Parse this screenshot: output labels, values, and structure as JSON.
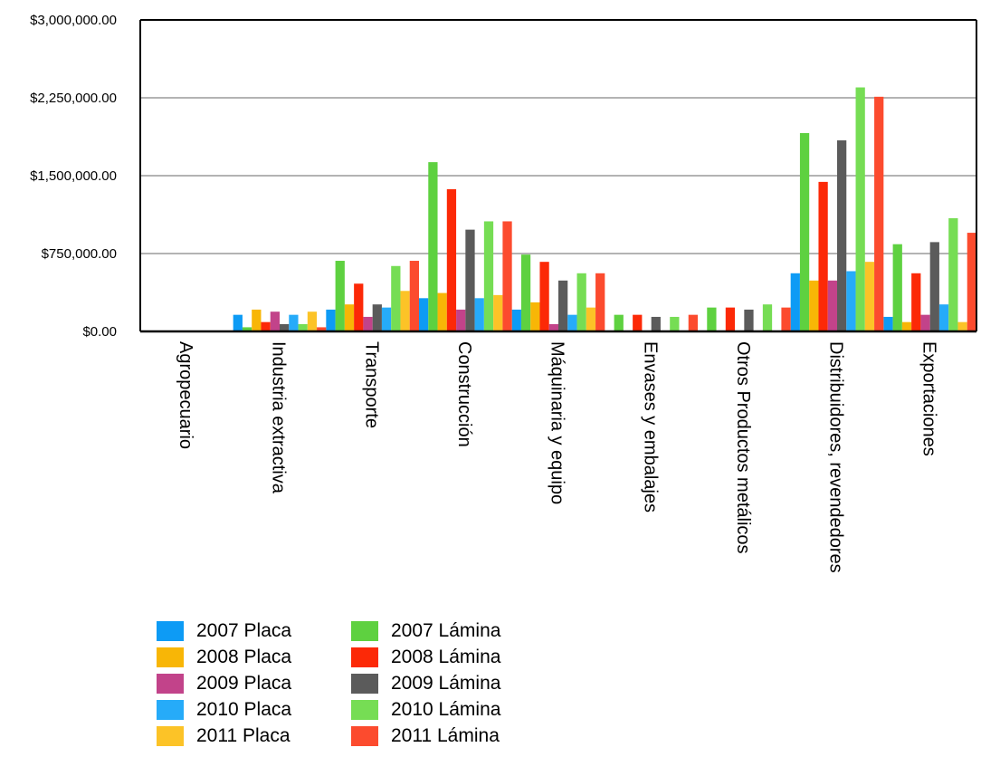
{
  "chart_data": {
    "type": "bar",
    "title": "",
    "xlabel": "",
    "ylabel": "",
    "ylim": [
      0,
      3000000
    ],
    "y_ticks": [
      "$0.00",
      "$750,000.00",
      "$1,500,000.00",
      "$2,250,000.00",
      "$3,000,000.00"
    ],
    "grid": true,
    "legend_position": "bottom-left",
    "categories": [
      "Agropecuario",
      "Industria extractiva",
      "Transporte",
      "Construcción",
      "Máquinaria y equipo",
      "Envases y embalajes",
      "Otros Productos metálicos",
      "Distribuidores, revendedores",
      "Exportaciones"
    ],
    "series": [
      {
        "name": "2007 Placa",
        "color": "#0d9bf5",
        "values": [
          0,
          160000,
          210000,
          320000,
          210000,
          0,
          0,
          560000,
          140000
        ]
      },
      {
        "name": "2007 Lámina",
        "color": "#5ed140",
        "values": [
          0,
          40000,
          680000,
          1630000,
          740000,
          160000,
          230000,
          1910000,
          840000
        ]
      },
      {
        "name": "2008 Placa",
        "color": "#f8b606",
        "values": [
          0,
          210000,
          260000,
          370000,
          280000,
          0,
          0,
          490000,
          90000
        ]
      },
      {
        "name": "2008 Lámina",
        "color": "#fc2907",
        "values": [
          0,
          90000,
          460000,
          1370000,
          670000,
          160000,
          230000,
          1440000,
          560000
        ]
      },
      {
        "name": "2009 Placa",
        "color": "#c2438a",
        "values": [
          0,
          190000,
          140000,
          210000,
          70000,
          0,
          0,
          490000,
          160000
        ]
      },
      {
        "name": "2009 Lámina",
        "color": "#5b5b5b",
        "values": [
          0,
          70000,
          260000,
          980000,
          490000,
          140000,
          210000,
          1840000,
          860000
        ]
      },
      {
        "name": "2010 Placa",
        "color": "#26abf9",
        "values": [
          0,
          160000,
          230000,
          320000,
          160000,
          0,
          0,
          580000,
          260000
        ]
      },
      {
        "name": "2010 Lámina",
        "color": "#76dd54",
        "values": [
          0,
          70000,
          630000,
          1060000,
          560000,
          140000,
          260000,
          2350000,
          1090000
        ]
      },
      {
        "name": "2011 Placa",
        "color": "#fcc327",
        "values": [
          0,
          190000,
          390000,
          350000,
          230000,
          0,
          0,
          670000,
          90000
        ]
      },
      {
        "name": "2011 Lámina",
        "color": "#fc4b2e",
        "values": [
          0,
          40000,
          680000,
          1060000,
          560000,
          160000,
          230000,
          2260000,
          950000
        ]
      }
    ]
  }
}
